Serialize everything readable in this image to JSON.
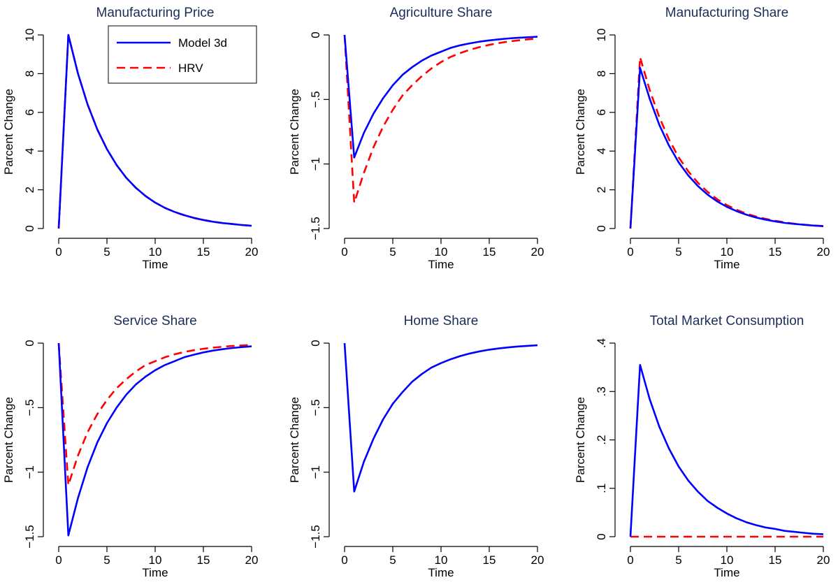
{
  "colors": {
    "series_a": "#0000ff",
    "series_b": "#ff0000",
    "title": "#1a2d5a"
  },
  "legend": {
    "placement": "top-right",
    "panel_index": 0,
    "series": [
      "Model 3d",
      "HRV"
    ]
  },
  "chart_data": [
    {
      "type": "line",
      "title": "Manufacturing Price",
      "xlabel": "Time",
      "ylabel": "Parcent Change",
      "xlim": [
        0,
        20
      ],
      "ylim": [
        0,
        10
      ],
      "xticks": [
        0,
        5,
        10,
        15,
        20
      ],
      "yticks": [
        0,
        2,
        4,
        6,
        8,
        10
      ],
      "ytick_labels": [
        "0",
        "2",
        "4",
        "6",
        "8",
        "10"
      ],
      "x": [
        0,
        1,
        2,
        3,
        4,
        5,
        6,
        7,
        8,
        9,
        10,
        11,
        12,
        13,
        14,
        15,
        16,
        17,
        18,
        19,
        20
      ],
      "series": [
        {
          "name": "Model 3d",
          "color": "#0000ff",
          "dash": "solid",
          "values": [
            0,
            10.0,
            8.0,
            6.4,
            5.12,
            4.1,
            3.28,
            2.62,
            2.1,
            1.68,
            1.34,
            1.07,
            0.86,
            0.69,
            0.55,
            0.44,
            0.35,
            0.28,
            0.23,
            0.18,
            0.14
          ]
        },
        {
          "name": "HRV",
          "color": "#ff0000",
          "dash": "dashed",
          "values": [
            0,
            10.0,
            8.0,
            6.4,
            5.12,
            4.1,
            3.28,
            2.62,
            2.1,
            1.68,
            1.34,
            1.07,
            0.86,
            0.69,
            0.55,
            0.44,
            0.35,
            0.28,
            0.23,
            0.18,
            0.14
          ]
        }
      ]
    },
    {
      "type": "line",
      "title": "Agriculture Share",
      "xlabel": "Time",
      "ylabel": "Parcent Change",
      "xlim": [
        0,
        20
      ],
      "ylim": [
        -1.5,
        0
      ],
      "xticks": [
        0,
        5,
        10,
        15,
        20
      ],
      "yticks": [
        -1.5,
        -1,
        -0.5,
        0
      ],
      "ytick_labels": [
        "−1.5",
        "−1",
        "−.5",
        "0"
      ],
      "x": [
        0,
        1,
        2,
        3,
        4,
        5,
        6,
        7,
        8,
        9,
        10,
        11,
        12,
        13,
        14,
        15,
        16,
        17,
        18,
        19,
        20
      ],
      "series": [
        {
          "name": "Model 3d",
          "color": "#0000ff",
          "dash": "solid",
          "values": [
            0,
            -0.95,
            -0.76,
            -0.61,
            -0.49,
            -0.39,
            -0.31,
            -0.25,
            -0.2,
            -0.16,
            -0.13,
            -0.1,
            -0.08,
            -0.065,
            -0.052,
            -0.042,
            -0.034,
            -0.027,
            -0.022,
            -0.018,
            -0.014
          ]
        },
        {
          "name": "HRV",
          "color": "#ff0000",
          "dash": "dashed",
          "values": [
            0,
            -1.3,
            -1.07,
            -0.87,
            -0.71,
            -0.58,
            -0.47,
            -0.39,
            -0.32,
            -0.26,
            -0.21,
            -0.17,
            -0.14,
            -0.115,
            -0.094,
            -0.077,
            -0.063,
            -0.051,
            -0.042,
            -0.034,
            -0.028
          ]
        }
      ]
    },
    {
      "type": "line",
      "title": "Manufacturing Share",
      "xlabel": "Time",
      "ylabel": "Parcent Change",
      "xlim": [
        0,
        20
      ],
      "ylim": [
        0,
        10
      ],
      "xticks": [
        0,
        5,
        10,
        15,
        20
      ],
      "yticks": [
        0,
        2,
        4,
        6,
        8,
        10
      ],
      "ytick_labels": [
        "0",
        "2",
        "4",
        "6",
        "8",
        "10"
      ],
      "x": [
        0,
        1,
        2,
        3,
        4,
        5,
        6,
        7,
        8,
        9,
        10,
        11,
        12,
        13,
        14,
        15,
        16,
        17,
        18,
        19,
        20
      ],
      "series": [
        {
          "name": "Model 3d",
          "color": "#0000ff",
          "dash": "solid",
          "values": [
            0,
            8.3,
            6.7,
            5.35,
            4.28,
            3.42,
            2.74,
            2.19,
            1.75,
            1.4,
            1.12,
            0.9,
            0.72,
            0.57,
            0.46,
            0.37,
            0.29,
            0.24,
            0.19,
            0.15,
            0.12
          ]
        },
        {
          "name": "HRV",
          "color": "#ff0000",
          "dash": "dashed",
          "values": [
            0,
            8.85,
            7.15,
            5.75,
            4.6,
            3.68,
            2.95,
            2.36,
            1.89,
            1.51,
            1.21,
            0.97,
            0.77,
            0.62,
            0.5,
            0.4,
            0.32,
            0.25,
            0.2,
            0.16,
            0.13
          ]
        }
      ]
    },
    {
      "type": "line",
      "title": "Service Share",
      "xlabel": "Time",
      "ylabel": "Parcent Change",
      "xlim": [
        0,
        20
      ],
      "ylim": [
        -1.5,
        0
      ],
      "xticks": [
        0,
        5,
        10,
        15,
        20
      ],
      "yticks": [
        -1.5,
        -1,
        -0.5,
        0
      ],
      "ytick_labels": [
        "−1.5",
        "−1",
        "−.5",
        "0"
      ],
      "x": [
        0,
        1,
        2,
        3,
        4,
        5,
        6,
        7,
        8,
        9,
        10,
        11,
        12,
        13,
        14,
        15,
        16,
        17,
        18,
        19,
        20
      ],
      "series": [
        {
          "name": "Model 3d",
          "color": "#0000ff",
          "dash": "solid",
          "values": [
            0,
            -1.49,
            -1.2,
            -0.96,
            -0.77,
            -0.62,
            -0.5,
            -0.4,
            -0.32,
            -0.26,
            -0.21,
            -0.17,
            -0.14,
            -0.11,
            -0.09,
            -0.072,
            -0.058,
            -0.047,
            -0.038,
            -0.031,
            -0.025
          ]
        },
        {
          "name": "HRV",
          "color": "#ff0000",
          "dash": "dashed",
          "values": [
            0,
            -1.1,
            -0.87,
            -0.69,
            -0.55,
            -0.44,
            -0.35,
            -0.28,
            -0.22,
            -0.17,
            -0.14,
            -0.11,
            -0.087,
            -0.069,
            -0.055,
            -0.044,
            -0.035,
            -0.028,
            -0.022,
            -0.018,
            -0.014
          ]
        }
      ]
    },
    {
      "type": "line",
      "title": "Home Share",
      "xlabel": "Time",
      "ylabel": "Parcent Change",
      "xlim": [
        0,
        20
      ],
      "ylim": [
        -1.5,
        0
      ],
      "xticks": [
        0,
        5,
        10,
        15,
        20
      ],
      "yticks": [
        -1.5,
        -1,
        -0.5,
        0
      ],
      "ytick_labels": [
        "−1.5",
        "−1",
        "−.5",
        "0"
      ],
      "x": [
        0,
        1,
        2,
        3,
        4,
        5,
        6,
        7,
        8,
        9,
        10,
        11,
        12,
        13,
        14,
        15,
        16,
        17,
        18,
        19,
        20
      ],
      "series": [
        {
          "name": "Model 3d",
          "color": "#0000ff",
          "dash": "solid",
          "values": [
            0,
            -1.15,
            -0.92,
            -0.74,
            -0.59,
            -0.47,
            -0.38,
            -0.3,
            -0.24,
            -0.19,
            -0.155,
            -0.125,
            -0.1,
            -0.08,
            -0.064,
            -0.051,
            -0.041,
            -0.033,
            -0.026,
            -0.021,
            -0.017
          ]
        }
      ]
    },
    {
      "type": "line",
      "title": "Total Market Consumption",
      "xlabel": "Time",
      "ylabel": "Parcent Change",
      "xlim": [
        0,
        20
      ],
      "ylim": [
        0,
        0.4
      ],
      "xticks": [
        0,
        5,
        10,
        15,
        20
      ],
      "yticks": [
        0,
        0.1,
        0.2,
        0.3,
        0.4
      ],
      "ytick_labels": [
        "0",
        ".1",
        ".2",
        ".3",
        ".4"
      ],
      "x": [
        0,
        1,
        2,
        3,
        4,
        5,
        6,
        7,
        8,
        9,
        10,
        11,
        12,
        13,
        14,
        15,
        16,
        17,
        18,
        19,
        20
      ],
      "series": [
        {
          "name": "Model 3d",
          "color": "#0000ff",
          "dash": "solid",
          "values": [
            0,
            0.355,
            0.284,
            0.227,
            0.182,
            0.145,
            0.116,
            0.093,
            0.074,
            0.06,
            0.048,
            0.038,
            0.03,
            0.024,
            0.019,
            0.016,
            0.012,
            0.01,
            0.008,
            0.006,
            0.005
          ]
        },
        {
          "name": "HRV",
          "color": "#ff0000",
          "dash": "dashed",
          "values": [
            0,
            0,
            0,
            0,
            0,
            0,
            0,
            0,
            0,
            0,
            0,
            0,
            0,
            0,
            0,
            0,
            0,
            0,
            0,
            0,
            0
          ]
        }
      ]
    }
  ]
}
